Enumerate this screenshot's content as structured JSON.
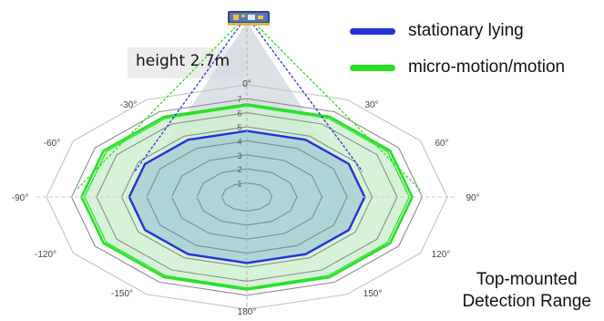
{
  "legend": {
    "items": [
      {
        "label": "stationary lying",
        "color": "#2433d6"
      },
      {
        "label": "micro-motion/motion",
        "color": "#28e028"
      }
    ]
  },
  "annotation": {
    "height": "height 2.7m"
  },
  "title": {
    "line1": "Top-mounted",
    "line2": "Detection Range"
  },
  "angle_labels": [
    "0°",
    "30°",
    "60°",
    "90°",
    "120°",
    "150°",
    "180°",
    "-150°",
    "-120°",
    "-90°",
    "-60°",
    "-30°"
  ],
  "radius_labels": [
    "1",
    "2",
    "3",
    "4",
    "5",
    "6",
    "7"
  ],
  "zones": {
    "stationary_radius_m": 4.7,
    "motion_radius_m": 6.6
  },
  "colors": {
    "stationary": "#2433d6",
    "motion": "#28e028",
    "grid": "#999999",
    "zone_fill": "#a8cfd6",
    "motion_fill": "#cdf0cd"
  },
  "icons": {
    "sensor": "radar-sensor-icon"
  }
}
